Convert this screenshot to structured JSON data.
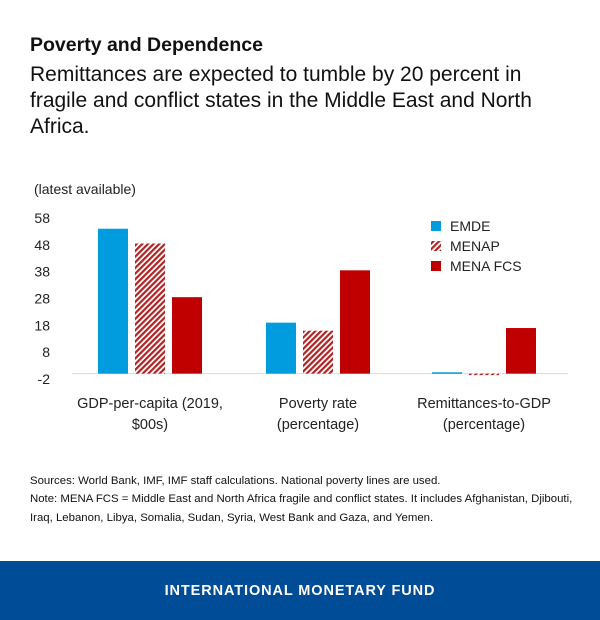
{
  "header": {
    "title": "Poverty and Dependence",
    "subtitle": "Remittances are expected to tumble by 20 percent in fragile and conflict states in the Middle East and North Africa."
  },
  "chart_data": {
    "type": "bar",
    "unit_label": "(latest available)",
    "categories": [
      [
        "GDP-per-capita (2019,",
        "$00s)"
      ],
      [
        "Poverty rate",
        "(percentage)"
      ],
      [
        "Remittances-to-GDP",
        "(percentage)"
      ]
    ],
    "series": [
      {
        "name": "EMDE",
        "values": [
          54,
          19,
          0.5
        ],
        "color": "#009cde",
        "pattern": "solid"
      },
      {
        "name": "MENAP",
        "values": [
          48.5,
          16,
          -0.5
        ],
        "color": "#b22222",
        "pattern": "hatched"
      },
      {
        "name": "MENA FCS",
        "values": [
          28.5,
          38.5,
          17
        ],
        "color": "#c00000",
        "pattern": "solid"
      }
    ],
    "yticks": [
      58,
      48,
      38,
      28,
      18,
      8,
      -2
    ],
    "ylim": [
      -2,
      58
    ],
    "legend_position": "top-right"
  },
  "notes": {
    "sources": "Sources: World Bank, IMF, IMF staff calculations. National poverty lines are used.",
    "note": "Note: MENA FCS = Middle East and North Africa fragile and conflict states. It includes Afghanistan, Djibouti, Iraq, Lebanon, Libya, Somalia, Sudan, Syria, West Bank and Gaza, and Yemen."
  },
  "footer": {
    "label": "INTERNATIONAL MONETARY FUND"
  }
}
